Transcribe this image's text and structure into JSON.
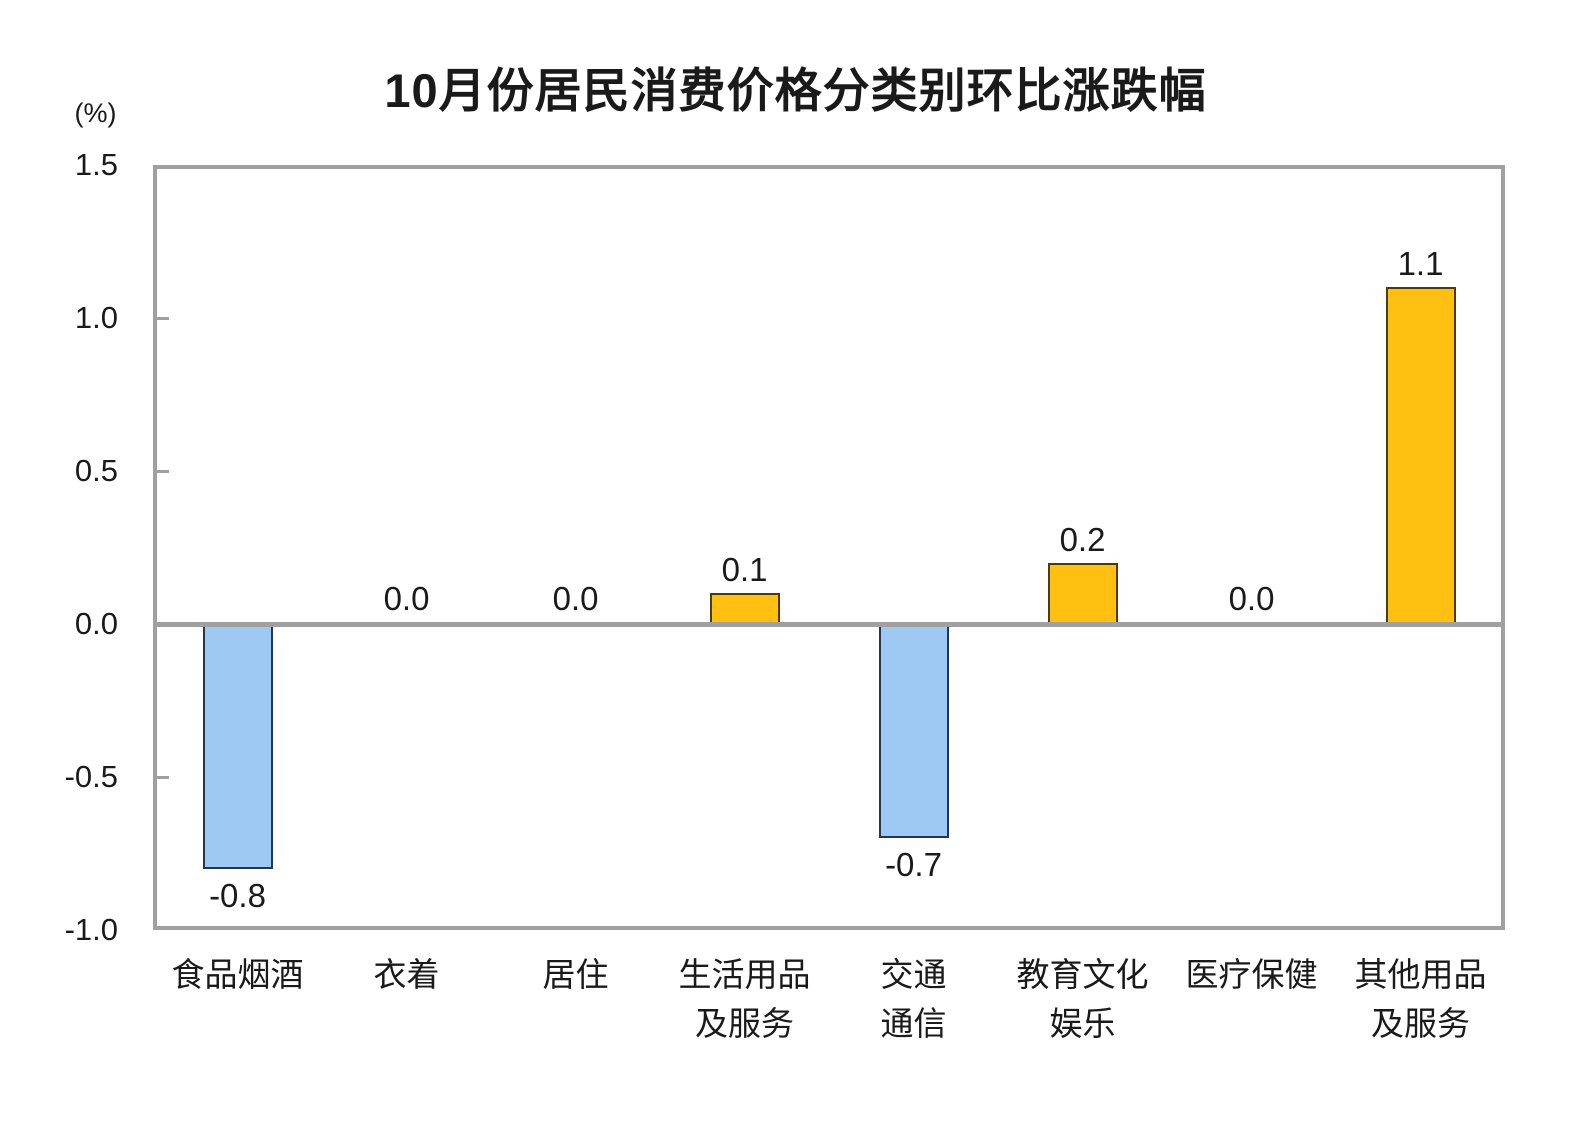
{
  "chart_data": {
    "type": "bar",
    "title": "10月份居民消费价格分类别环比涨跌幅",
    "unit_label": "(%)",
    "categories": [
      {
        "lines": [
          "食品烟酒"
        ]
      },
      {
        "lines": [
          "衣着"
        ]
      },
      {
        "lines": [
          "居住"
        ]
      },
      {
        "lines": [
          "生活用品",
          "及服务"
        ]
      },
      {
        "lines": [
          "交通",
          "通信"
        ]
      },
      {
        "lines": [
          "教育文化",
          "娱乐"
        ]
      },
      {
        "lines": [
          "医疗保健"
        ]
      },
      {
        "lines": [
          "其他用品",
          "及服务"
        ]
      }
    ],
    "values": [
      -0.8,
      0.0,
      0.0,
      0.1,
      -0.7,
      0.2,
      0.0,
      1.1
    ],
    "value_labels": [
      "-0.8",
      "0.0",
      "0.0",
      "0.1",
      "-0.7",
      "0.2",
      "0.0",
      "1.1"
    ],
    "xlabel": "",
    "ylabel": "(%)",
    "ylim": [
      -1.0,
      1.5
    ],
    "yticks": [
      {
        "value": 1.5,
        "label": "1.5"
      },
      {
        "value": 1.0,
        "label": "1.0"
      },
      {
        "value": 0.5,
        "label": "0.5"
      },
      {
        "value": 0.0,
        "label": "0.0"
      },
      {
        "value": -0.5,
        "label": "-0.5"
      },
      {
        "value": -1.0,
        "label": "-1.0"
      }
    ],
    "inner_tick_values": [
      1.0,
      0.5,
      -0.5
    ],
    "grid": false,
    "legend": null,
    "colors": {
      "positive_fill": "#FFC012",
      "positive_border": "#4D3B00",
      "negative_fill": "#9DC9F2",
      "negative_border": "#203754",
      "axis_line": "#A0A0A0",
      "text": "#1A1A1A",
      "background": "#FFFFFF"
    }
  }
}
